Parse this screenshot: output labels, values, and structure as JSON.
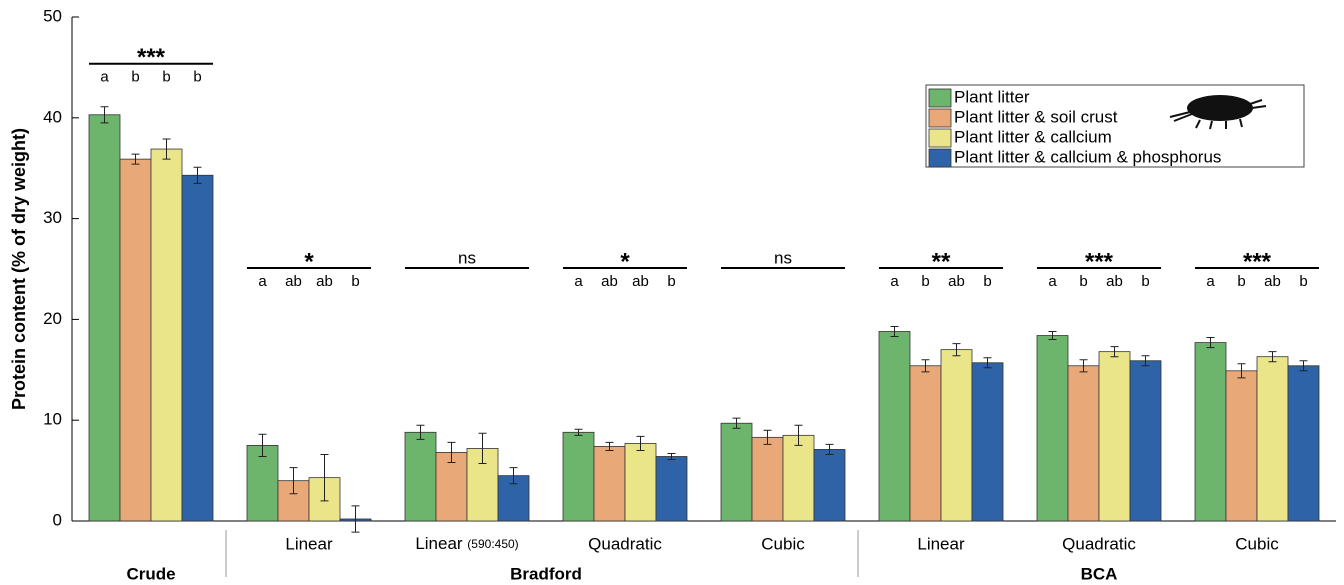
{
  "chart_data": {
    "type": "bar",
    "ylabel": "Protein content  (% of dry weight)",
    "ylim": [
      0,
      50
    ],
    "yticks": [
      0,
      10,
      20,
      30,
      40,
      50
    ],
    "groups": [
      {
        "name": "Crude",
        "categories": [
          null
        ]
      },
      {
        "name": "Bradford",
        "categories": [
          "Linear",
          "Linear (590:450)",
          "Quadratic",
          "Cubic"
        ]
      },
      {
        "name": "BCA",
        "categories": [
          "Linear",
          "Quadratic",
          "Cubic"
        ]
      }
    ],
    "significance": [
      "***",
      "*",
      "ns",
      "*",
      "ns",
      "**",
      "***",
      "***"
    ],
    "letters": [
      [
        "a",
        "b",
        "b",
        "b"
      ],
      [
        "a",
        "ab",
        "ab",
        "b"
      ],
      null,
      [
        "a",
        "ab",
        "ab",
        "b"
      ],
      null,
      [
        "a",
        "b",
        "ab",
        "b"
      ],
      [
        "a",
        "b",
        "ab",
        "b"
      ],
      [
        "a",
        "b",
        "ab",
        "b"
      ]
    ],
    "series": [
      {
        "name": "Plant litter",
        "color": "#6db46d",
        "values": [
          40.3,
          7.5,
          8.8,
          8.8,
          9.7,
          18.8,
          18.4,
          17.7
        ],
        "errors": [
          0.8,
          1.1,
          0.7,
          0.3,
          0.5,
          0.5,
          0.4,
          0.5
        ]
      },
      {
        "name": "Plant litter & soil crust",
        "color": "#e8a878",
        "values": [
          35.9,
          4.0,
          6.8,
          7.4,
          8.3,
          15.4,
          15.4,
          14.9
        ],
        "errors": [
          0.5,
          1.3,
          1.0,
          0.4,
          0.7,
          0.6,
          0.6,
          0.7
        ]
      },
      {
        "name": "Plant litter & callcium",
        "color": "#ebe58a",
        "values": [
          36.9,
          4.3,
          7.2,
          7.7,
          8.5,
          17.0,
          16.8,
          16.3
        ],
        "errors": [
          1.0,
          2.3,
          1.5,
          0.7,
          1.0,
          0.6,
          0.5,
          0.5
        ]
      },
      {
        "name": "Plant litter & callcium & phosphorus",
        "color": "#2e63a7",
        "values": [
          34.3,
          0.2,
          4.5,
          6.4,
          7.1,
          15.7,
          15.9,
          15.4
        ],
        "errors": [
          0.8,
          1.3,
          0.8,
          0.3,
          0.5,
          0.5,
          0.5,
          0.5
        ]
      }
    ],
    "legend": "upper right"
  }
}
